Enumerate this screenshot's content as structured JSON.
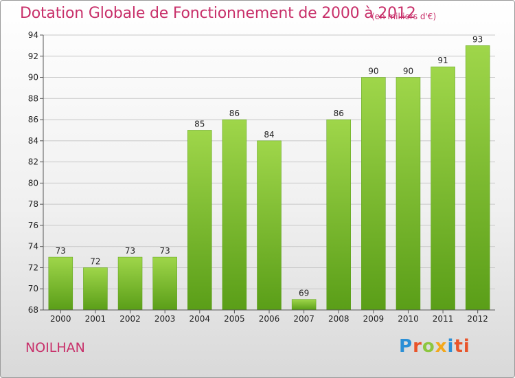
{
  "chart_data": {
    "type": "bar",
    "title": "Dotation Globale de Fonctionnement de 2000 à 2012",
    "subtitle": "(en milliers d'€)",
    "categories": [
      "2000",
      "2001",
      "2002",
      "2003",
      "2004",
      "2005",
      "2006",
      "2007",
      "2008",
      "2009",
      "2010",
      "2011",
      "2012"
    ],
    "values": [
      73,
      72,
      73,
      73,
      85,
      86,
      84,
      69,
      86,
      90,
      90,
      91,
      93
    ],
    "ylim": [
      68,
      94
    ],
    "yticks": [
      68,
      70,
      72,
      74,
      76,
      78,
      80,
      82,
      84,
      86,
      88,
      90,
      92,
      94
    ],
    "grid": true,
    "bar_color": "#7dbe2f"
  },
  "footer": {
    "commune": "NOILHAN",
    "logo_letters": [
      "P",
      "r",
      "o",
      "x",
      "i",
      "ti"
    ]
  }
}
